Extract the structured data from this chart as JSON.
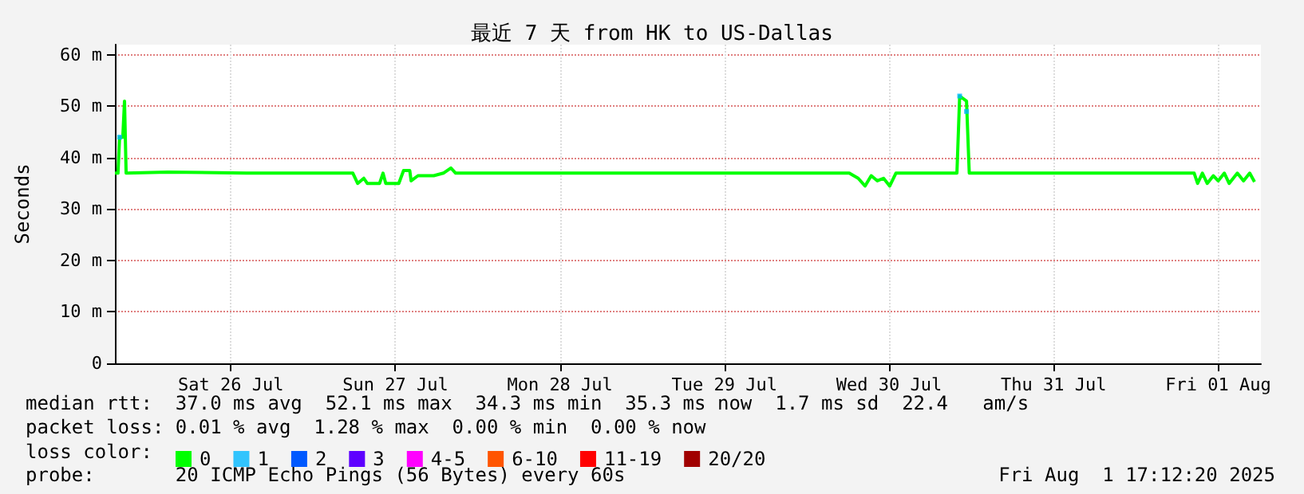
{
  "chart_data": {
    "type": "line",
    "title": "最近 7 天 from HK to US-Dallas",
    "ylabel": "Seconds",
    "legend_title": "loss color:",
    "legend": "bottom left",
    "grid": true,
    "xlim": [
      "2025-07-25T19:06",
      "2025-08-01T18:14"
    ],
    "xticks": [
      {
        "value": "2025-07-26T12:00",
        "label": "Sat 26 Jul"
      },
      {
        "value": "2025-07-27T12:00",
        "label": "Sun 27 Jul"
      },
      {
        "value": "2025-07-28T12:00",
        "label": "Mon 28 Jul"
      },
      {
        "value": "2025-07-29T12:00",
        "label": "Tue 29 Jul"
      },
      {
        "value": "2025-07-30T12:00",
        "label": "Wed 30 Jul"
      },
      {
        "value": "2025-07-31T12:00",
        "label": "Thu 31 Jul"
      },
      {
        "value": "2025-08-01T12:00",
        "label": "Fri 01 Aug"
      }
    ],
    "ylim": [
      0,
      62
    ],
    "yticks": [
      0,
      {
        "value": 10,
        "label": "10 m"
      },
      {
        "value": 20,
        "label": "20 m"
      },
      {
        "value": 30,
        "label": "30 m"
      },
      {
        "value": 40,
        "label": "40 m"
      },
      {
        "value": 50,
        "label": "50 m"
      },
      {
        "value": 60,
        "label": "60 m"
      }
    ],
    "series": [
      {
        "name": "0",
        "color": "#00ff00",
        "x": [
          "2025-07-25T19:06",
          "2025-07-25T19:33",
          "2025-07-25T19:47",
          "2025-07-25T20:15",
          "2025-07-25T20:30",
          "2025-07-25T20:44",
          "2025-07-26T02:48",
          "2025-07-26T14:18",
          "2025-07-27T05:48",
          "2025-07-27T06:30",
          "2025-07-27T07:24",
          "2025-07-27T07:54",
          "2025-07-27T09:42",
          "2025-07-27T10:12",
          "2025-07-27T10:36",
          "2025-07-27T12:30",
          "2025-07-27T13:12",
          "2025-07-27T14:06",
          "2025-07-27T14:18",
          "2025-07-27T15:18",
          "2025-07-27T17:36",
          "2025-07-27T19:00",
          "2025-07-27T20:06",
          "2025-07-27T20:48",
          "2025-07-30T06:12",
          "2025-07-30T07:30",
          "2025-07-30T08:30",
          "2025-07-30T09:24",
          "2025-07-30T10:18",
          "2025-07-30T11:12",
          "2025-07-30T12:06",
          "2025-07-30T13:00",
          "2025-07-30T21:54",
          "2025-07-30T22:18",
          "2025-07-30T23:18",
          "2025-07-30T23:42",
          "2025-08-01T08:30",
          "2025-08-01T09:00",
          "2025-08-01T09:42",
          "2025-08-01T10:24",
          "2025-08-01T11:18",
          "2025-08-01T12:00",
          "2025-08-01T12:54",
          "2025-08-01T13:36",
          "2025-08-01T14:48",
          "2025-08-01T15:42",
          "2025-08-01T16:36",
          "2025-08-01T17:18"
        ],
        "values": [
          37,
          37,
          44,
          44,
          51,
          37,
          37.2,
          37,
          37,
          35,
          36,
          35,
          35,
          37,
          35,
          35,
          37.5,
          37.5,
          35.5,
          36.5,
          36.5,
          37,
          38,
          37,
          37,
          36,
          34.5,
          36.5,
          35.5,
          36,
          34.5,
          37,
          37,
          52,
          51,
          37,
          37,
          35,
          37,
          35,
          36.5,
          35.5,
          37,
          35,
          37,
          35.5,
          37,
          35.3
        ]
      },
      {
        "name": "1",
        "color": "#00b8ff",
        "type": "scatter",
        "marker": "square",
        "x": [
          "2025-07-25T19:47",
          "2025-07-30T22:18",
          "2025-07-30T23:18"
        ],
        "values": [
          44,
          52,
          49
        ]
      },
      {
        "name": "2",
        "color": "#0059ff"
      },
      {
        "name": "3",
        "color": "#5e00ff"
      },
      {
        "name": "4-5",
        "color": "#ff00ff"
      },
      {
        "name": "6-10",
        "color": "#ff5500"
      },
      {
        "name": "11-19",
        "color": "#ff0000"
      },
      {
        "name": "20/20",
        "color": "#a10000"
      }
    ],
    "annotations": [
      "median rtt:  37.0 ms avg  52.1 ms max  34.3 ms min  35.3 ms now  1.7 ms sd  22.4   am/s",
      "packet loss: 0.01 % avg  1.28 % max  0.00 % min  0.00 % now",
      "probe:       20 ICMP Echo Pings (56 Bytes) every 60s",
      "Fri Aug  1 17:12:20 2025"
    ]
  }
}
